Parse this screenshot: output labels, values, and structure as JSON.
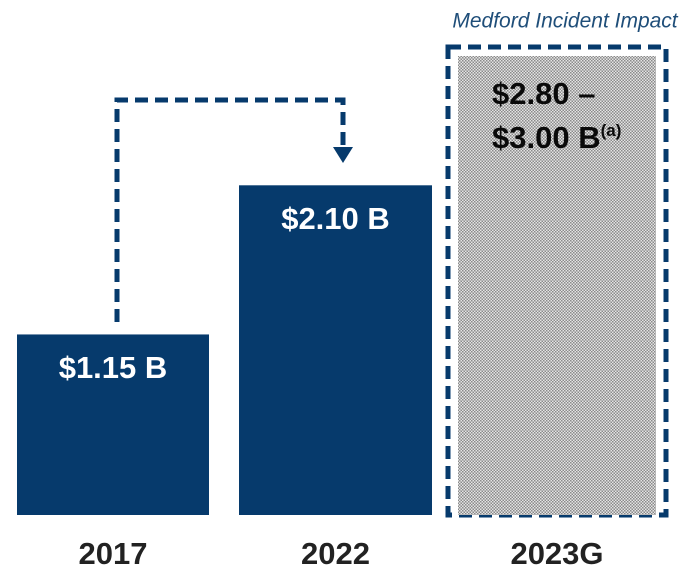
{
  "chart_data": {
    "type": "bar",
    "categories": [
      "2017",
      "2022",
      "2023G"
    ],
    "values": [
      1.15,
      2.1,
      3.0
    ],
    "value_labels": [
      "$1.15 B",
      "$2.10 B",
      "$2.80 – $3.00 B"
    ],
    "footnotes": [
      null,
      null,
      "(a)"
    ],
    "hatched": [
      false,
      false,
      true
    ],
    "color": "#063a6c",
    "annotation": "Medford Incident Impact"
  }
}
